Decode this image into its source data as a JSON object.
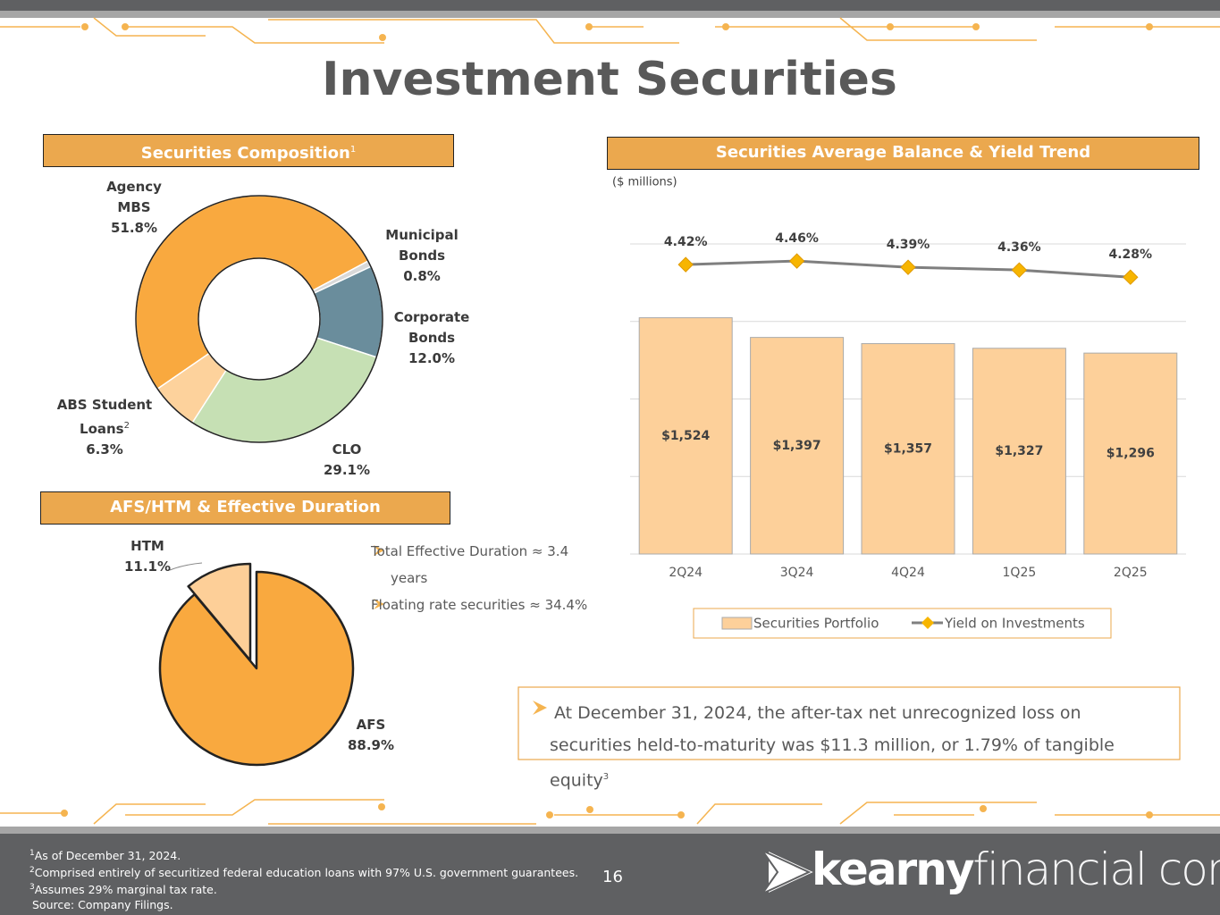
{
  "title": "Investment Securities",
  "chart_data": [
    {
      "type": "donut",
      "title": "Securities Composition",
      "title_note": "1",
      "categories": [
        "Agency MBS",
        "Municipal Bonds",
        "Corporate Bonds",
        "CLO",
        "ABS Student Loans"
      ],
      "category_notes": [
        null,
        null,
        null,
        null,
        "2"
      ],
      "values": [
        51.8,
        0.8,
        12.0,
        29.1,
        6.3
      ],
      "value_labels": [
        "51.8%",
        "0.8%",
        "12.0%",
        "29.1%",
        "6.3%"
      ],
      "colors": [
        "#f9a93f",
        "#d9d9d9",
        "#6a8d9c",
        "#c6e0b4",
        "#fdd29c"
      ]
    },
    {
      "type": "pie",
      "title": "AFS/HTM & Effective Duration",
      "categories": [
        "AFS",
        "HTM"
      ],
      "values": [
        88.9,
        11.1
      ],
      "value_labels": [
        "88.9%",
        "11.1%"
      ],
      "colors": [
        "#f9a93f",
        "#fdcf98"
      ],
      "bullets": [
        "Total Effective Duration ≈ 3.4 years",
        "Floating rate securities ≈ 34.4%"
      ]
    },
    {
      "type": "bar_line",
      "title": "Securities Average Balance & Yield Trend",
      "subtitle": "($ millions)",
      "categories": [
        "2Q24",
        "3Q24",
        "4Q24",
        "1Q25",
        "2Q25"
      ],
      "ylim": [
        0,
        2000
      ],
      "yticks": [
        0,
        500,
        1000,
        1500,
        2000
      ],
      "grid": true,
      "y2lim": [
        1.2,
        4.65
      ],
      "series": [
        {
          "name": "Securities Portfolio",
          "type": "bar",
          "color": "#fdd09a",
          "values": [
            1524,
            1397,
            1357,
            1327,
            1296
          ],
          "value_labels": [
            "$1,524",
            "$1,397",
            "$1,357",
            "$1,327",
            "$1,296"
          ]
        },
        {
          "name": "Yield on Investments",
          "type": "line",
          "axis": "y2",
          "color": "#7f7f7f",
          "marker_color": "#f7b500",
          "values": [
            4.42,
            4.46,
            4.39,
            4.36,
            4.28
          ],
          "value_labels": [
            "4.42%",
            "4.46%",
            "4.39%",
            "4.36%",
            "4.28%"
          ]
        }
      ]
    }
  ],
  "callout": {
    "text": "At December 31, 2024, the after-tax net unrecognized loss on securities held-to-maturity was $11.3 million, or 1.79% of tangible equity",
    "note": "3"
  },
  "footnotes": [
    {
      "note": "1",
      "text": "As of December 31, 2024."
    },
    {
      "note": "2",
      "text": "Comprised entirely of securitized federal education loans with 97% U.S. government guarantees."
    },
    {
      "note": "3",
      "text": "Assumes 29% marginal tax rate."
    },
    {
      "text": "Source: Company Filings."
    }
  ],
  "page_number": "16",
  "logo": {
    "bold": "kearny",
    "light": "financial corp."
  }
}
